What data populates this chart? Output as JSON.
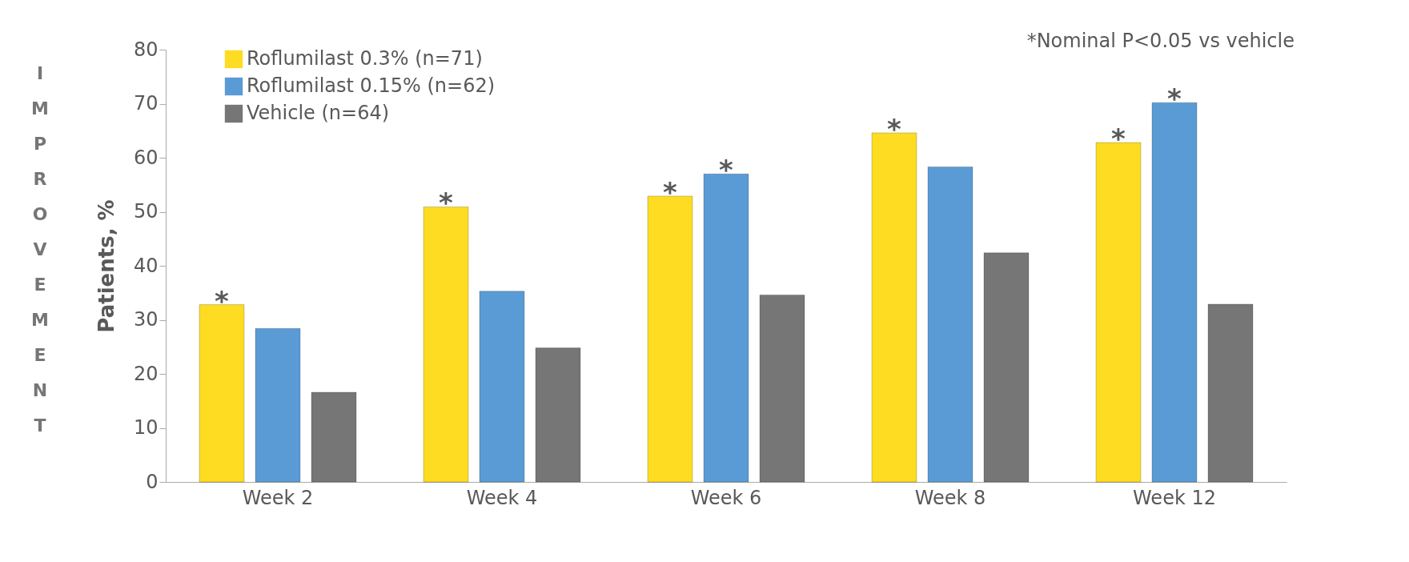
{
  "chart_data": {
    "type": "bar",
    "ylabel": "Patients, %",
    "categories": [
      "Week 2",
      "Week 4",
      "Week 6",
      "Week 8",
      "Week 12"
    ],
    "series": [
      {
        "name": "Roflumilast 0.3% (n=71)",
        "color": "#fddc22",
        "values": [
          32.8,
          50.9,
          52.9,
          64.6,
          62.8
        ],
        "value_labels": [
          "*",
          "*",
          "*",
          "*",
          "*"
        ]
      },
      {
        "name": "Roflumilast 0.15% (n=62)",
        "color": "#5b9bd5",
        "values": [
          28.4,
          35.3,
          57.0,
          58.3,
          70.2
        ],
        "value_labels": [
          null,
          null,
          "*",
          null,
          "*"
        ]
      },
      {
        "name": "Vehicle (n=64)",
        "color": "#767676",
        "values": [
          16.6,
          24.8,
          34.6,
          42.4,
          32.9
        ]
      }
    ],
    "ylim": [
      0,
      80
    ],
    "yticks": [
      0,
      10,
      20,
      30,
      40,
      50,
      60,
      70,
      80
    ],
    "grid": false,
    "legend": "top left",
    "annotations": [
      "*Nominal P<0.05 vs vehicle",
      "IMPROVEMENT"
    ]
  }
}
